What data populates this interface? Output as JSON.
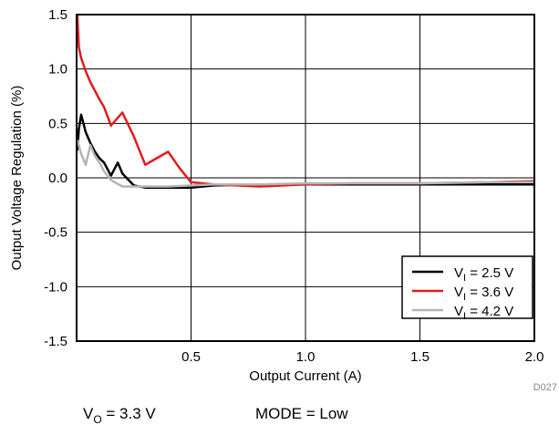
{
  "chart_data": {
    "type": "line",
    "xlabel": "Output Current (A)",
    "ylabel": "Output Voltage Regulation (%)",
    "xlim": [
      0,
      2.0
    ],
    "ylim": [
      -1.5,
      1.5
    ],
    "x_ticks": [
      0.5,
      1.0,
      1.5,
      2.0
    ],
    "x_tick_labels": [
      "0.5",
      "1.0",
      "1.5",
      "2.0"
    ],
    "y_ticks": [
      1.5,
      1.0,
      0.5,
      0.0,
      -0.5,
      -1.0,
      -1.5
    ],
    "y_tick_labels": [
      "1.5",
      "1.0",
      "0.5",
      "0.0",
      "-0.5",
      "-1.0",
      "-1.5"
    ],
    "grid": true,
    "legend_position": "bottom-right",
    "series": [
      {
        "name": "V_I = 2.5 V",
        "label_main": "V",
        "label_sub": "I",
        "label_rest": " = 2.5 V",
        "color": "#000000",
        "x": [
          0.003,
          0.01,
          0.02,
          0.04,
          0.06,
          0.08,
          0.1,
          0.12,
          0.15,
          0.18,
          0.2,
          0.25,
          0.3,
          0.4,
          0.5,
          0.6,
          0.8,
          1.0,
          1.2,
          1.5,
          1.8,
          2.0
        ],
        "y": [
          0.25,
          0.45,
          0.58,
          0.42,
          0.32,
          0.24,
          0.18,
          0.14,
          0.02,
          0.14,
          0.04,
          -0.07,
          -0.09,
          -0.09,
          -0.09,
          -0.07,
          -0.06,
          -0.06,
          -0.06,
          -0.06,
          -0.06,
          -0.06
        ]
      },
      {
        "name": "V_I = 3.6 V",
        "label_main": "V",
        "label_sub": "I",
        "label_rest": " = 3.6 V",
        "color": "#e41a1c",
        "x": [
          0.003,
          0.01,
          0.02,
          0.04,
          0.06,
          0.08,
          0.1,
          0.12,
          0.15,
          0.2,
          0.25,
          0.3,
          0.35,
          0.4,
          0.45,
          0.5,
          0.6,
          0.8,
          1.0,
          1.2,
          1.5,
          1.8,
          2.0
        ],
        "y": [
          1.5,
          1.2,
          1.1,
          0.98,
          0.88,
          0.8,
          0.72,
          0.65,
          0.48,
          0.6,
          0.38,
          0.12,
          0.18,
          0.24,
          0.09,
          -0.04,
          -0.06,
          -0.08,
          -0.06,
          -0.05,
          -0.05,
          -0.04,
          -0.03
        ]
      },
      {
        "name": "V_I = 4.2 V",
        "label_main": "V",
        "label_sub": "I",
        "label_rest": " = 4.2 V",
        "color": "#b4b4b4",
        "x": [
          0.003,
          0.02,
          0.04,
          0.06,
          0.08,
          0.1,
          0.12,
          0.15,
          0.2,
          0.25,
          0.3,
          0.4,
          0.5,
          0.6,
          0.8,
          1.0,
          1.2,
          1.5,
          1.8,
          2.0
        ],
        "y": [
          0.35,
          0.22,
          0.12,
          0.3,
          0.2,
          0.14,
          0.06,
          -0.02,
          -0.08,
          -0.08,
          -0.08,
          -0.08,
          -0.07,
          -0.06,
          -0.06,
          -0.05,
          -0.05,
          -0.05,
          -0.04,
          -0.04
        ]
      }
    ]
  },
  "figure_id": "D027",
  "conditions": {
    "vo_main": "V",
    "vo_sub": "O",
    "vo_rest": " = 3.3 V",
    "mode": "MODE = Low"
  }
}
